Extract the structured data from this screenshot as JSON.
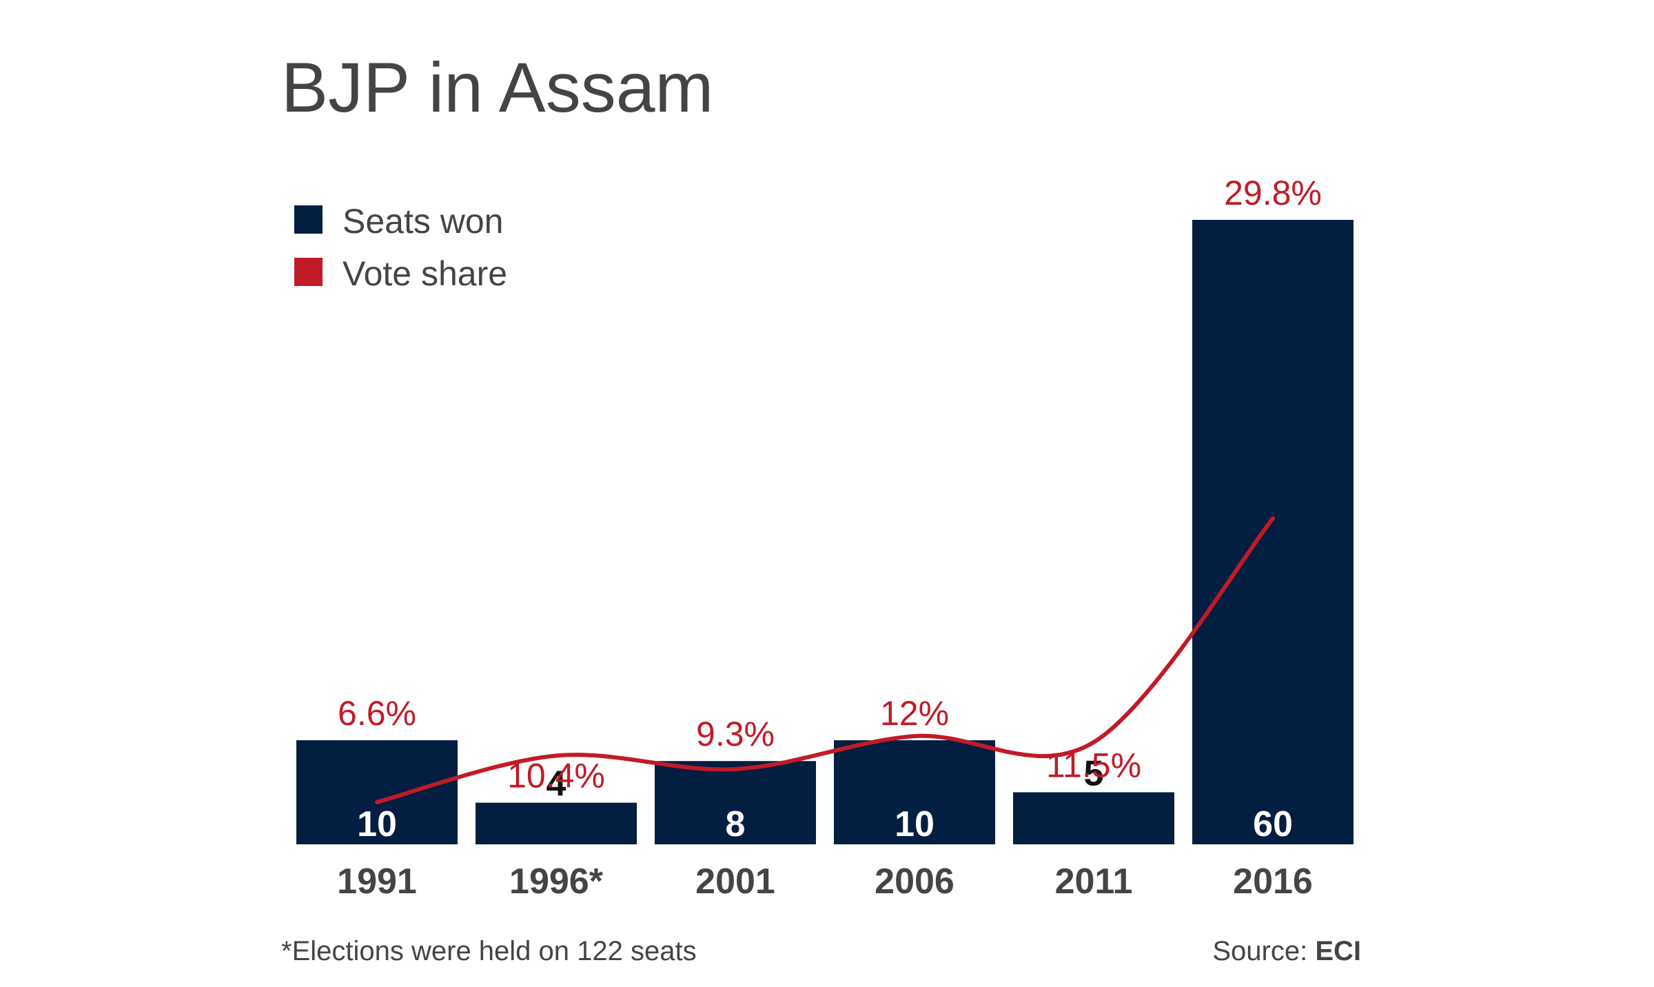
{
  "colors": {
    "seats": "#021e40",
    "vote_share": "#c11b27",
    "text": "#444444",
    "bar_label_inside": "#ffffff",
    "bar_label_outside": "#111111"
  },
  "chart_data": {
    "type": "bar",
    "title": "BJP in Assam",
    "categories": [
      "1991",
      "1996*",
      "2001",
      "2006",
      "2011",
      "2016"
    ],
    "series": [
      {
        "name": "Seats won",
        "type": "bar",
        "values": [
          10,
          4,
          8,
          10,
          5,
          60
        ]
      },
      {
        "name": "Vote share",
        "type": "line",
        "values": [
          6.6,
          10.4,
          9.3,
          12,
          11.5,
          29.8
        ],
        "labels": [
          "6.6%",
          "10.4%",
          "9.3%",
          "12%",
          "11.5%",
          "29.8%"
        ]
      }
    ],
    "ylim": [
      0,
      60
    ],
    "grid": false,
    "legend_position": "top-left"
  },
  "footnote": "*Elections were held on 122 seats",
  "source": {
    "prefix": "Source: ",
    "name": "ECI"
  }
}
